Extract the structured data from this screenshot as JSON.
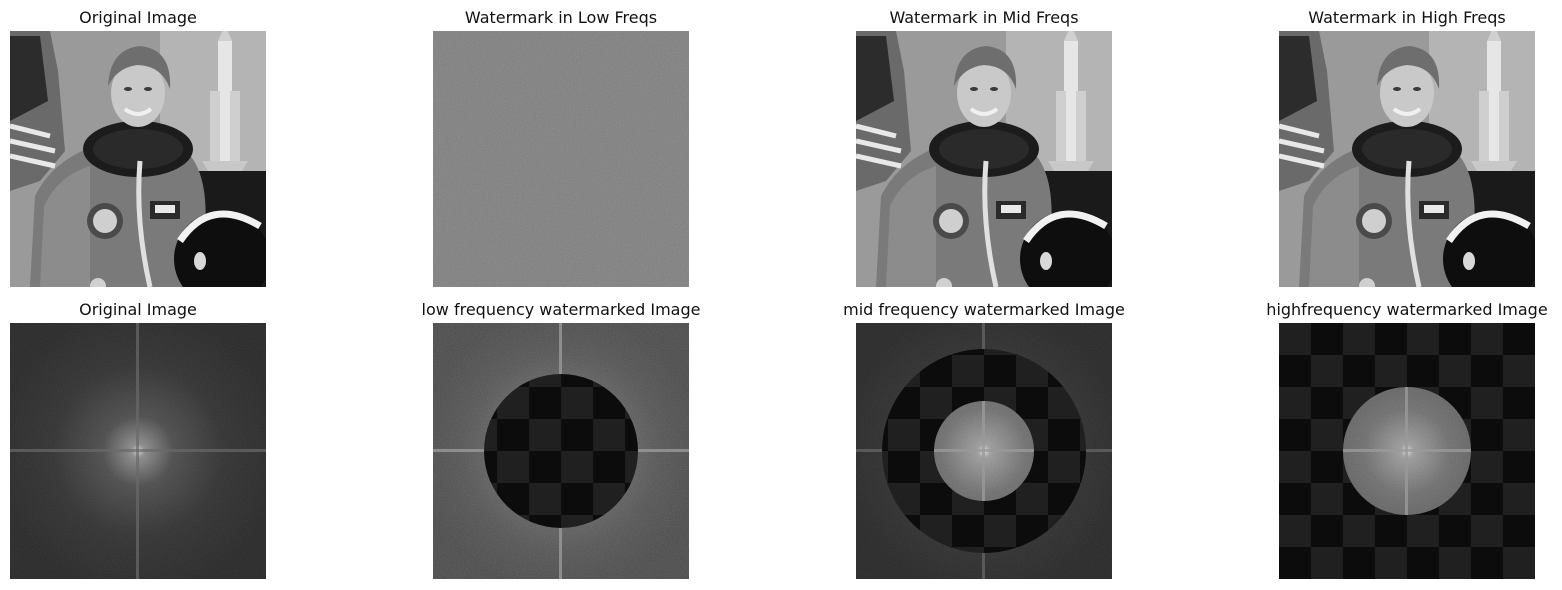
{
  "panels": {
    "top": [
      {
        "title": "Original Image",
        "icon": "astronaut-photo"
      },
      {
        "title": "Watermark in Low Freqs",
        "icon": "noise-gray-image"
      },
      {
        "title": "Watermark in Mid Freqs",
        "icon": "astronaut-photo"
      },
      {
        "title": "Watermark in High Freqs",
        "icon": "astronaut-photo"
      }
    ],
    "bottom": [
      {
        "title": "Original Image",
        "icon": "fft-spectrum"
      },
      {
        "title": "low frequency watermarked Image",
        "icon": "fft-spectrum-low-mask"
      },
      {
        "title": "mid frequency watermarked Image",
        "icon": "fft-spectrum-ring-mask"
      },
      {
        "title": "highfrequency watermarked Image",
        "icon": "fft-spectrum-high-mask"
      }
    ]
  },
  "colors": {
    "background": "#ffffff",
    "title_text": "#111111",
    "mid_gray": "#808080",
    "checker_dark": "#0c0c0c",
    "checker_light": "#202020"
  }
}
